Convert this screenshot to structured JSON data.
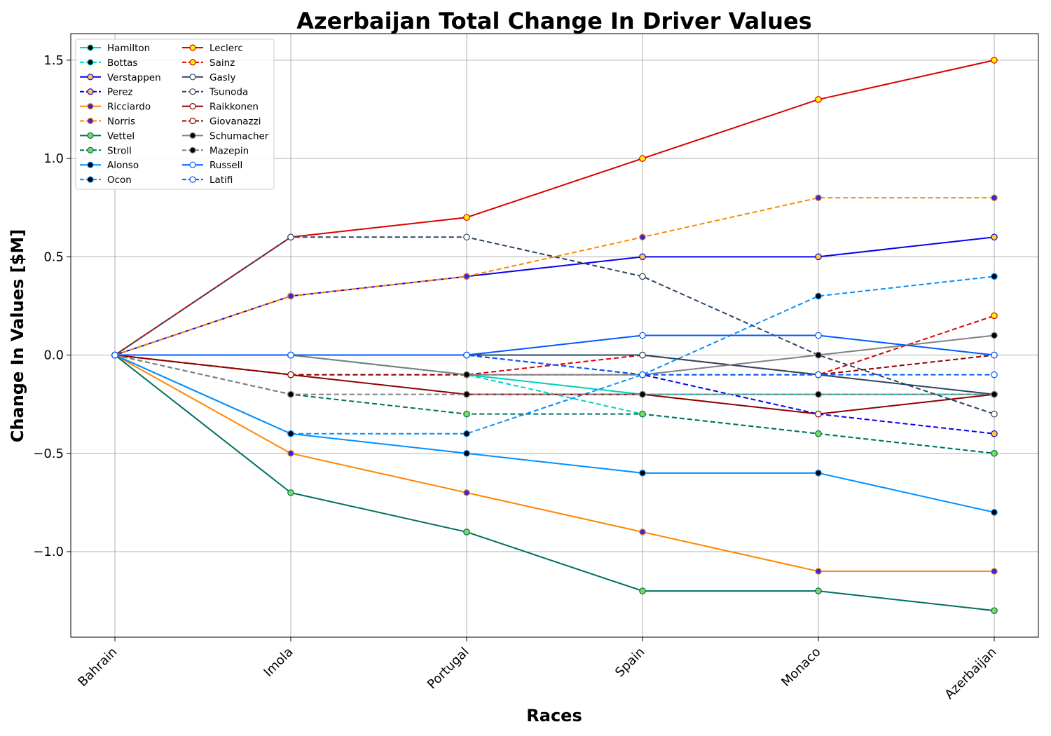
{
  "chart_data": {
    "type": "line",
    "title": "Azerbaijan Total Change In Driver Values",
    "xlabel": "Races",
    "ylabel": "Change In Values [$M]",
    "categories": [
      "Bahrain",
      "Imola",
      "Portugal",
      "Spain",
      "Monaco",
      "Azerbaijan"
    ],
    "ylim": [
      -1.435,
      1.635
    ],
    "yticks": [
      -1.0,
      -0.5,
      0.0,
      0.5,
      1.0,
      1.5
    ],
    "ytick_labels": [
      "−1.0",
      "−0.5",
      "0.0",
      "0.5",
      "1.0",
      "1.5"
    ],
    "grid": true,
    "legend_position": "top-left",
    "legend_columns": 2,
    "series": [
      {
        "name": "Hamilton",
        "values": [
          0,
          0,
          -0.1,
          -0.2,
          -0.2,
          -0.2
        ],
        "color": "#00d2be",
        "dash": "solid",
        "marker_fill": "#000000",
        "marker_edge": "#00d2be"
      },
      {
        "name": "Bottas",
        "values": [
          0,
          0,
          -0.1,
          -0.3,
          -0.4,
          -0.5
        ],
        "color": "#00d2be",
        "dash": "dashed",
        "marker_fill": "#000000",
        "marker_edge": "#00d2be"
      },
      {
        "name": "Verstappen",
        "values": [
          0,
          0.3,
          0.4,
          0.5,
          0.5,
          0.6
        ],
        "color": "#0600ef",
        "dash": "solid",
        "marker_fill": "#ffcc33",
        "marker_edge": "#0600ef"
      },
      {
        "name": "Perez",
        "values": [
          0,
          0,
          0,
          -0.1,
          -0.3,
          -0.4
        ],
        "color": "#0600ef",
        "dash": "dashed",
        "marker_fill": "#ffcc33",
        "marker_edge": "#0600ef"
      },
      {
        "name": "Ricciardo",
        "values": [
          0,
          -0.5,
          -0.7,
          -0.9,
          -1.1,
          -1.1
        ],
        "color": "#ff8700",
        "dash": "solid",
        "marker_fill": "#2a2aee",
        "marker_edge": "#ff8700"
      },
      {
        "name": "Norris",
        "values": [
          0,
          0.3,
          0.4,
          0.6,
          0.8,
          0.8
        ],
        "color": "#ff8700",
        "dash": "dashed",
        "marker_fill": "#2a2aee",
        "marker_edge": "#ff8700"
      },
      {
        "name": "Vettel",
        "values": [
          0,
          -0.7,
          -0.9,
          -1.2,
          -1.2,
          -1.3
        ],
        "color": "#006f62",
        "dash": "solid",
        "marker_fill": "#7ed957",
        "marker_edge": "#006f62"
      },
      {
        "name": "Stroll",
        "values": [
          0,
          -0.2,
          -0.3,
          -0.3,
          -0.4,
          -0.5
        ],
        "color": "#006f62",
        "dash": "dashed",
        "marker_fill": "#7ed957",
        "marker_edge": "#006f62"
      },
      {
        "name": "Alonso",
        "values": [
          0,
          -0.4,
          -0.5,
          -0.6,
          -0.6,
          -0.8
        ],
        "color": "#0090ff",
        "dash": "solid",
        "marker_fill": "#000000",
        "marker_edge": "#0090ff"
      },
      {
        "name": "Ocon",
        "values": [
          0,
          -0.4,
          -0.4,
          -0.1,
          0.3,
          0.4
        ],
        "color": "#0090ff",
        "dash": "dashed",
        "marker_fill": "#000000",
        "marker_edge": "#0090ff"
      },
      {
        "name": "Leclerc",
        "values": [
          0,
          0.6,
          0.7,
          1.0,
          1.3,
          1.5
        ],
        "color": "#dc0000",
        "dash": "solid",
        "marker_fill": "#fff200",
        "marker_edge": "#dc0000"
      },
      {
        "name": "Sainz",
        "values": [
          0,
          -0.1,
          -0.1,
          0,
          -0.1,
          0.2
        ],
        "color": "#dc0000",
        "dash": "dashed",
        "marker_fill": "#fff200",
        "marker_edge": "#dc0000"
      },
      {
        "name": "Gasly",
        "values": [
          0,
          0,
          0,
          0,
          -0.1,
          -0.2
        ],
        "color": "#2b4562",
        "dash": "solid",
        "marker_fill": "#ffffff",
        "marker_edge": "#2b4562"
      },
      {
        "name": "Tsunoda",
        "values": [
          0,
          0.6,
          0.6,
          0.4,
          0,
          -0.3
        ],
        "color": "#2b4562",
        "dash": "dashed",
        "marker_fill": "#ffffff",
        "marker_edge": "#2b4562"
      },
      {
        "name": "Raikkonen",
        "values": [
          0,
          -0.1,
          -0.2,
          -0.2,
          -0.3,
          -0.2
        ],
        "color": "#900000",
        "dash": "solid",
        "marker_fill": "#ffffff",
        "marker_edge": "#900000"
      },
      {
        "name": "Giovanazzi",
        "values": [
          0,
          -0.1,
          -0.1,
          -0.1,
          -0.1,
          0
        ],
        "color": "#900000",
        "dash": "dashed",
        "marker_fill": "#ffffff",
        "marker_edge": "#900000"
      },
      {
        "name": "Schumacher",
        "values": [
          0,
          0,
          -0.1,
          -0.1,
          0,
          0.1
        ],
        "color": "#808080",
        "dash": "solid",
        "marker_fill": "#000000",
        "marker_edge": "#808080"
      },
      {
        "name": "Mazepin",
        "values": [
          0,
          -0.2,
          -0.2,
          -0.2,
          -0.2,
          -0.2
        ],
        "color": "#808080",
        "dash": "dashed",
        "marker_fill": "#000000",
        "marker_edge": "#808080"
      },
      {
        "name": "Russell",
        "values": [
          0,
          0,
          0,
          0.1,
          0.1,
          0
        ],
        "color": "#005aff",
        "dash": "solid",
        "marker_fill": "#ffffff",
        "marker_edge": "#005aff"
      },
      {
        "name": "Latifi",
        "values": [
          0,
          0,
          0,
          -0.1,
          -0.1,
          -0.1
        ],
        "color": "#005aff",
        "dash": "dashed",
        "marker_fill": "#ffffff",
        "marker_edge": "#005aff"
      }
    ]
  }
}
